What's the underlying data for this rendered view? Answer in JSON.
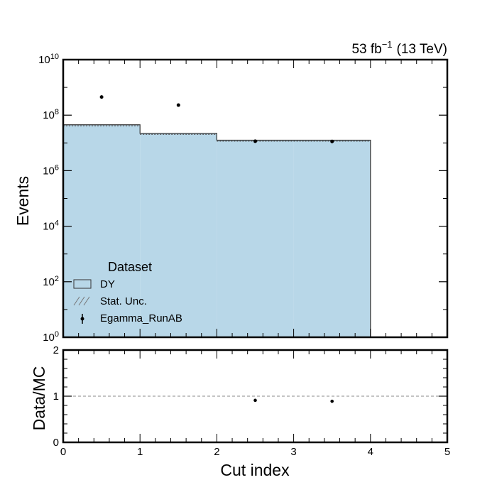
{
  "chart_data": {
    "type": "histogram",
    "luminosity": {
      "value": "53 fb",
      "exponent": "−1",
      "energy": "(13 TeV)"
    },
    "bin_edges": [
      0,
      1,
      2,
      3,
      4,
      5
    ],
    "x_ticks": [
      "0",
      "1",
      "2",
      "3",
      "4",
      "5"
    ],
    "xlabel": "Cut index",
    "xlim": [
      0,
      5
    ],
    "main_panel": {
      "ylabel": "Events",
      "yscale": "log",
      "ylim": [
        1,
        10000000000
      ],
      "y_ticks": [
        {
          "base": "10",
          "exp": "0"
        },
        {
          "base": "10",
          "exp": "2"
        },
        {
          "base": "10",
          "exp": "4"
        },
        {
          "base": "10",
          "exp": "6"
        },
        {
          "base": "10",
          "exp": "8"
        },
        {
          "base": "10",
          "exp": "10"
        }
      ],
      "mc": {
        "name": "DY",
        "color": "#b8d7e8",
        "edgecolor": "#333333",
        "values": [
          45000000,
          22000000,
          12500000,
          12500000,
          0
        ]
      },
      "data": {
        "name": "Egamma_RunAB",
        "x": [
          0.5,
          1.5,
          2.5,
          3.5
        ],
        "y": [
          450000000,
          230000000,
          11500000,
          11300000
        ]
      },
      "legend": {
        "title": "Dataset",
        "position": "lower-left",
        "entries": [
          "DY",
          "Stat. Unc.",
          "Egamma_RunAB"
        ]
      }
    },
    "ratio_panel": {
      "ylabel": "Data/MC",
      "ylim": [
        0,
        2
      ],
      "y_ticks": [
        "0",
        "1",
        "2"
      ],
      "reference_line": 1,
      "x": [
        2.5,
        3.5
      ],
      "y": [
        0.91,
        0.89
      ]
    }
  }
}
